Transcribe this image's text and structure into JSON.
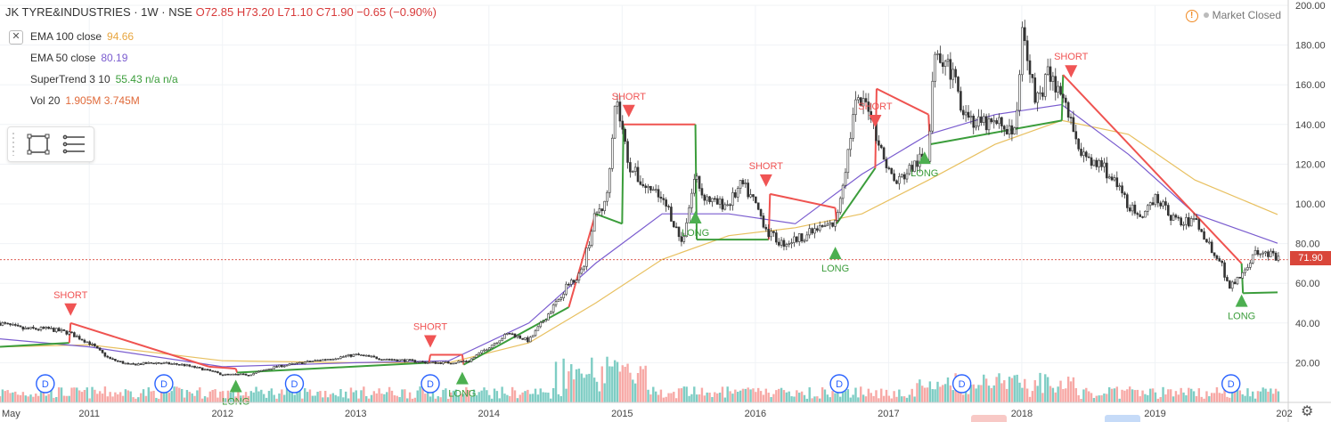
{
  "header": {
    "symbol": "JK TYRE&INDUSTRIES · 1W · NSE",
    "ohlc": "O72.85 H73.20 L71.10 C71.90 −0.65 (−0.90%)"
  },
  "indicators": [
    {
      "label": "EMA 100 close",
      "value": "94.66",
      "color": "#e8a640"
    },
    {
      "label": "EMA 50 close",
      "value": "80.19",
      "color": "#7a5ccf"
    },
    {
      "label": "SuperTrend 3 10",
      "value": "55.43  n/a  n/a",
      "color": "#3b9d3b"
    },
    {
      "label": "Vol 20",
      "value": "1.905M  3.745M",
      "color": "#e06a3a"
    }
  ],
  "toggle_symbol": "✕",
  "status": {
    "text": "Market Closed"
  },
  "last_price": "71.90",
  "icons": {
    "gear": "gear-icon",
    "rectangle": "rectangle-tool-icon",
    "lines": "lines-tool-icon",
    "dividend": "dividend-marker-icon",
    "warning": "warning-icon"
  },
  "colors": {
    "up": "#26a69a",
    "down": "#ef5350",
    "volume_up": "#7ecdc4",
    "volume_down": "#f7a9a6",
    "supertrend_up": "#3b9d3b",
    "supertrend_down": "#ef5350",
    "ema100": "#e8c060",
    "ema50": "#7a5ccf",
    "last_price_line": "#d9463a"
  },
  "chart_data": {
    "type": "line",
    "title": "JK TYRE&INDUSTRIES · 1W · NSE",
    "xlabel": "",
    "ylabel": "",
    "x_ticks": [
      "May",
      "2011",
      "2012",
      "2013",
      "2014",
      "2015",
      "2016",
      "2017",
      "2018",
      "2019",
      "202"
    ],
    "y_ticks": [
      "20.00",
      "40.00",
      "60.00",
      "80.00",
      "100.00",
      "120.00",
      "140.00",
      "160.00",
      "180.00",
      "200.00"
    ],
    "ylim": [
      0,
      200
    ],
    "xlim": [
      2010.33,
      2020.0
    ],
    "grid": true,
    "series": [
      {
        "name": "Close",
        "x": [
          2010.33,
          2010.5,
          2010.7,
          2010.85,
          2011.0,
          2011.15,
          2011.3,
          2011.5,
          2011.7,
          2011.9,
          2012.0,
          2012.2,
          2012.4,
          2012.6,
          2012.8,
          2013.0,
          2013.2,
          2013.4,
          2013.55,
          2013.7,
          2013.85,
          2014.0,
          2014.15,
          2014.3,
          2014.45,
          2014.6,
          2014.7,
          2014.8,
          2014.88,
          2014.95,
          2015.05,
          2015.15,
          2015.25,
          2015.35,
          2015.45,
          2015.55,
          2015.6,
          2015.7,
          2015.8,
          2015.9,
          2016.0,
          2016.1,
          2016.2,
          2016.3,
          2016.4,
          2016.5,
          2016.6,
          2016.68,
          2016.75,
          2016.85,
          2016.95,
          2017.05,
          2017.2,
          2017.3,
          2017.35,
          2017.45,
          2017.55,
          2017.65,
          2017.75,
          2017.85,
          2017.95,
          2018.0,
          2018.05,
          2018.1,
          2018.2,
          2018.3,
          2018.4,
          2018.5,
          2018.6,
          2018.7,
          2018.8,
          2018.9,
          2019.0,
          2019.1,
          2019.2,
          2019.3,
          2019.4,
          2019.5,
          2019.55,
          2019.65,
          2019.75,
          2019.85,
          2019.92
        ],
        "values": [
          40,
          37,
          37,
          35,
          30,
          22,
          19,
          20,
          19,
          16,
          14,
          14,
          18,
          20,
          22,
          24,
          22,
          21,
          20,
          20,
          21,
          28,
          35,
          31,
          45,
          60,
          66,
          95,
          100,
          155,
          120,
          110,
          105,
          97,
          80,
          115,
          105,
          100,
          100,
          110,
          100,
          85,
          80,
          82,
          85,
          88,
          90,
          120,
          150,
          150,
          125,
          110,
          120,
          125,
          180,
          170,
          150,
          140,
          140,
          140,
          135,
          185,
          175,
          150,
          165,
          155,
          135,
          120,
          120,
          110,
          100,
          90,
          105,
          95,
          90,
          92,
          80,
          70,
          58,
          65,
          75,
          75,
          71.9
        ]
      },
      {
        "name": "EMA 100 close",
        "x": [
          2010.33,
          2011.0,
          2012.0,
          2013.0,
          2013.7,
          2014.3,
          2014.8,
          2015.3,
          2015.8,
          2016.3,
          2016.8,
          2017.3,
          2017.8,
          2018.3,
          2018.8,
          2019.3,
          2019.92
        ],
        "values": [
          28,
          29,
          21,
          20,
          20,
          30,
          50,
          72,
          84,
          88,
          95,
          112,
          130,
          142,
          135,
          112,
          94.66
        ]
      },
      {
        "name": "EMA 50 close",
        "x": [
          2010.33,
          2011.0,
          2012.0,
          2013.0,
          2013.7,
          2014.3,
          2014.8,
          2015.3,
          2015.8,
          2016.3,
          2016.8,
          2017.3,
          2017.8,
          2018.3,
          2018.8,
          2019.3,
          2019.92
        ],
        "values": [
          32,
          28,
          18,
          20,
          21,
          40,
          70,
          95,
          95,
          90,
          115,
          135,
          145,
          150,
          125,
          95,
          80.19
        ]
      },
      {
        "name": "SuperTrend 3 10",
        "x": [
          2010.33,
          2010.85,
          2010.86,
          2011.9,
          2012.1,
          2012.11,
          2013.55,
          2013.56,
          2013.8,
          2013.81,
          2014.6,
          2014.8,
          2015.0,
          2015.01,
          2015.55,
          2015.56,
          2016.1,
          2016.11,
          2016.6,
          2016.61,
          2016.9,
          2016.91,
          2017.3,
          2017.31,
          2018.3,
          2018.31,
          2019.65,
          2019.66,
          2019.92
        ],
        "values": [
          28,
          30,
          40,
          18,
          17,
          15,
          20,
          24,
          24,
          19,
          48,
          95,
          90,
          140,
          140,
          82,
          82,
          105,
          98,
          90,
          118,
          158,
          145,
          130,
          142,
          165,
          70,
          55,
          55.43
        ]
      }
    ],
    "volume": {
      "name": "Vol 20",
      "last": "1.905M",
      "ma": "3.745M"
    },
    "signals": [
      {
        "label": "SHORT",
        "x": 2010.86,
        "y": 40
      },
      {
        "label": "SHORT",
        "x": 2013.56,
        "y": 24
      },
      {
        "label": "SHORT",
        "x": 2015.05,
        "y": 140
      },
      {
        "label": "SHORT",
        "x": 2016.08,
        "y": 105
      },
      {
        "label": "SHORT",
        "x": 2016.9,
        "y": 135
      },
      {
        "label": "SHORT",
        "x": 2018.37,
        "y": 160
      },
      {
        "label": "LONG",
        "x": 2012.1,
        "y": 15
      },
      {
        "label": "LONG",
        "x": 2013.8,
        "y": 19
      },
      {
        "label": "LONG",
        "x": 2015.55,
        "y": 100
      },
      {
        "label": "LONG",
        "x": 2016.6,
        "y": 82
      },
      {
        "label": "LONG",
        "x": 2017.27,
        "y": 130
      },
      {
        "label": "LONG",
        "x": 2019.65,
        "y": 58
      }
    ],
    "dividends": [
      2010.67,
      2011.56,
      2012.54,
      2013.56,
      2016.63,
      2017.55,
      2019.57
    ],
    "dividend_label": "D",
    "last_price": 71.9,
    "legend_position": "top-left"
  }
}
